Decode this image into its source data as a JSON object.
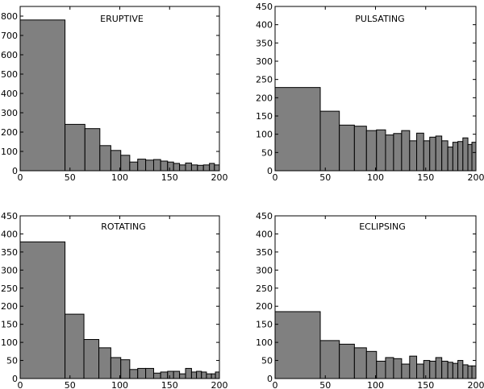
{
  "chart_data": [
    {
      "type": "bar",
      "title": "ERUPTIVE",
      "xlim": [
        0,
        200
      ],
      "ylim": [
        0,
        850
      ],
      "xticks": [
        0,
        50,
        100,
        150,
        200
      ],
      "yticks": [
        0,
        100,
        200,
        300,
        400,
        500,
        600,
        700,
        800
      ],
      "bins": [
        {
          "x0": 0,
          "x1": 45,
          "value": 780
        },
        {
          "x0": 45,
          "x1": 65,
          "value": 240
        },
        {
          "x0": 65,
          "x1": 80,
          "value": 218
        },
        {
          "x0": 80,
          "x1": 91,
          "value": 130
        },
        {
          "x0": 91,
          "x1": 101,
          "value": 105
        },
        {
          "x0": 101,
          "x1": 110,
          "value": 80
        },
        {
          "x0": 110,
          "x1": 118,
          "value": 45
        },
        {
          "x0": 118,
          "x1": 126,
          "value": 60
        },
        {
          "x0": 126,
          "x1": 134,
          "value": 55
        },
        {
          "x0": 134,
          "x1": 141,
          "value": 58
        },
        {
          "x0": 141,
          "x1": 148,
          "value": 50
        },
        {
          "x0": 148,
          "x1": 154,
          "value": 45
        },
        {
          "x0": 154,
          "x1": 160,
          "value": 38
        },
        {
          "x0": 160,
          "x1": 166,
          "value": 30
        },
        {
          "x0": 166,
          "x1": 172,
          "value": 40
        },
        {
          "x0": 172,
          "x1": 178,
          "value": 30
        },
        {
          "x0": 178,
          "x1": 184,
          "value": 28
        },
        {
          "x0": 184,
          "x1": 190,
          "value": 30
        },
        {
          "x0": 190,
          "x1": 195,
          "value": 38
        },
        {
          "x0": 195,
          "x1": 200,
          "value": 30
        }
      ]
    },
    {
      "type": "bar",
      "title": "PULSATING",
      "xlim": [
        0,
        200
      ],
      "ylim": [
        0,
        450
      ],
      "xticks": [
        0,
        50,
        100,
        150,
        200
      ],
      "yticks": [
        0,
        50,
        100,
        150,
        200,
        250,
        300,
        350,
        400,
        450
      ],
      "bins": [
        {
          "x0": 0,
          "x1": 45,
          "value": 228
        },
        {
          "x0": 45,
          "x1": 64,
          "value": 163
        },
        {
          "x0": 64,
          "x1": 79,
          "value": 125
        },
        {
          "x0": 79,
          "x1": 91,
          "value": 122
        },
        {
          "x0": 91,
          "x1": 101,
          "value": 110
        },
        {
          "x0": 101,
          "x1": 110,
          "value": 112
        },
        {
          "x0": 110,
          "x1": 118,
          "value": 98
        },
        {
          "x0": 118,
          "x1": 126,
          "value": 102
        },
        {
          "x0": 126,
          "x1": 134,
          "value": 110
        },
        {
          "x0": 134,
          "x1": 141,
          "value": 82
        },
        {
          "x0": 141,
          "x1": 148,
          "value": 103
        },
        {
          "x0": 148,
          "x1": 154,
          "value": 82
        },
        {
          "x0": 154,
          "x1": 160,
          "value": 92
        },
        {
          "x0": 160,
          "x1": 166,
          "value": 95
        },
        {
          "x0": 166,
          "x1": 172,
          "value": 82
        },
        {
          "x0": 172,
          "x1": 177,
          "value": 65
        },
        {
          "x0": 177,
          "x1": 182,
          "value": 78
        },
        {
          "x0": 182,
          "x1": 187,
          "value": 80
        },
        {
          "x0": 187,
          "x1": 192,
          "value": 90
        },
        {
          "x0": 192,
          "x1": 196,
          "value": 72
        },
        {
          "x0": 196,
          "x1": 200,
          "value": 78
        }
      ]
    },
    {
      "type": "bar",
      "title": "ROTATING",
      "xlim": [
        0,
        200
      ],
      "ylim": [
        0,
        450
      ],
      "xticks": [
        0,
        50,
        100,
        150,
        200
      ],
      "yticks": [
        0,
        50,
        100,
        150,
        200,
        250,
        300,
        350,
        400,
        450
      ],
      "bins": [
        {
          "x0": 0,
          "x1": 45,
          "value": 378
        },
        {
          "x0": 45,
          "x1": 64,
          "value": 178
        },
        {
          "x0": 64,
          "x1": 79,
          "value": 108
        },
        {
          "x0": 79,
          "x1": 91,
          "value": 85
        },
        {
          "x0": 91,
          "x1": 101,
          "value": 58
        },
        {
          "x0": 101,
          "x1": 110,
          "value": 52
        },
        {
          "x0": 110,
          "x1": 118,
          "value": 25
        },
        {
          "x0": 118,
          "x1": 126,
          "value": 28
        },
        {
          "x0": 126,
          "x1": 134,
          "value": 28
        },
        {
          "x0": 134,
          "x1": 141,
          "value": 15
        },
        {
          "x0": 141,
          "x1": 148,
          "value": 18
        },
        {
          "x0": 148,
          "x1": 154,
          "value": 20
        },
        {
          "x0": 154,
          "x1": 160,
          "value": 20
        },
        {
          "x0": 160,
          "x1": 166,
          "value": 13
        },
        {
          "x0": 166,
          "x1": 172,
          "value": 28
        },
        {
          "x0": 172,
          "x1": 177,
          "value": 18
        },
        {
          "x0": 177,
          "x1": 182,
          "value": 20
        },
        {
          "x0": 182,
          "x1": 187,
          "value": 18
        },
        {
          "x0": 187,
          "x1": 192,
          "value": 13
        },
        {
          "x0": 192,
          "x1": 196,
          "value": 13
        },
        {
          "x0": 196,
          "x1": 200,
          "value": 18
        }
      ]
    },
    {
      "type": "bar",
      "title": "ECLIPSING",
      "xlim": [
        0,
        200
      ],
      "ylim": [
        0,
        450
      ],
      "xticks": [
        0,
        50,
        100,
        150,
        200
      ],
      "yticks": [
        0,
        50,
        100,
        150,
        200,
        250,
        300,
        350,
        400,
        450
      ],
      "bins": [
        {
          "x0": 0,
          "x1": 45,
          "value": 185
        },
        {
          "x0": 45,
          "x1": 64,
          "value": 105
        },
        {
          "x0": 64,
          "x1": 79,
          "value": 95
        },
        {
          "x0": 79,
          "x1": 91,
          "value": 85
        },
        {
          "x0": 91,
          "x1": 101,
          "value": 75
        },
        {
          "x0": 101,
          "x1": 110,
          "value": 48
        },
        {
          "x0": 110,
          "x1": 118,
          "value": 58
        },
        {
          "x0": 118,
          "x1": 126,
          "value": 55
        },
        {
          "x0": 126,
          "x1": 134,
          "value": 40
        },
        {
          "x0": 134,
          "x1": 141,
          "value": 62
        },
        {
          "x0": 141,
          "x1": 148,
          "value": 40
        },
        {
          "x0": 148,
          "x1": 154,
          "value": 50
        },
        {
          "x0": 154,
          "x1": 160,
          "value": 48
        },
        {
          "x0": 160,
          "x1": 166,
          "value": 58
        },
        {
          "x0": 166,
          "x1": 172,
          "value": 48
        },
        {
          "x0": 172,
          "x1": 177,
          "value": 45
        },
        {
          "x0": 177,
          "x1": 182,
          "value": 42
        },
        {
          "x0": 182,
          "x1": 187,
          "value": 50
        },
        {
          "x0": 187,
          "x1": 192,
          "value": 38
        },
        {
          "x0": 192,
          "x1": 196,
          "value": 35
        },
        {
          "x0": 196,
          "x1": 200,
          "value": 35
        }
      ]
    }
  ]
}
